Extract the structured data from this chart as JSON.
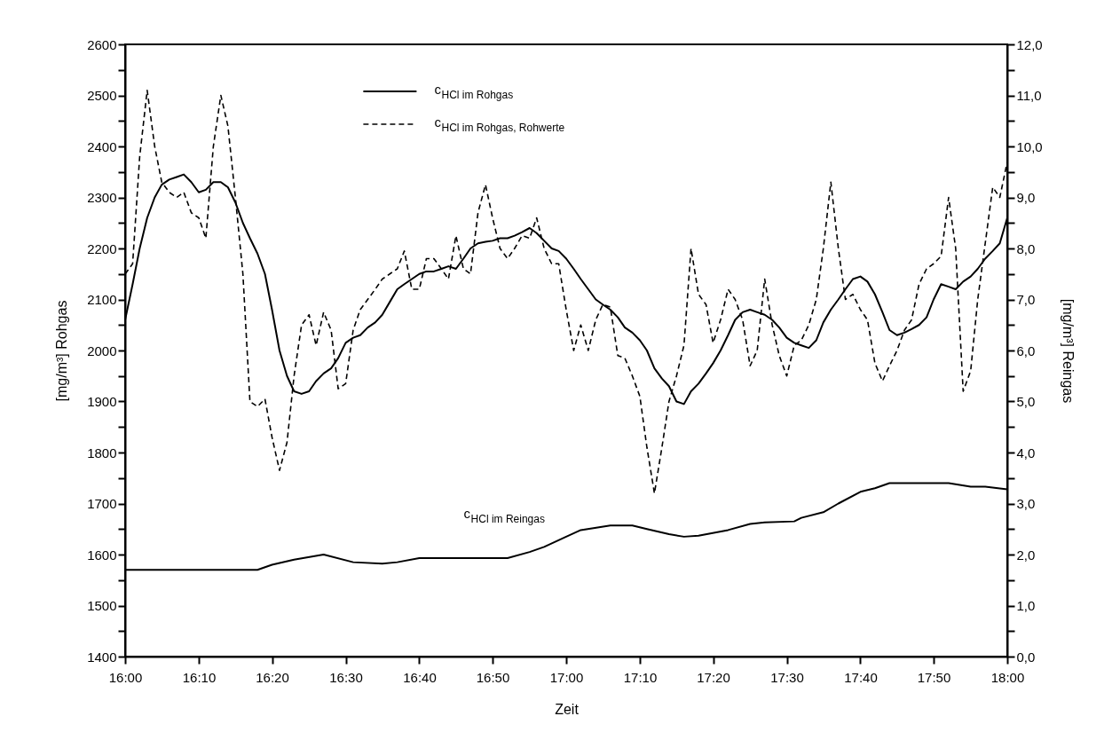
{
  "chart_data": {
    "type": "line",
    "xlabel": "Zeit",
    "ylabel": "[mg/m³] Rohgas",
    "y2label": "[mg/m³] Reingas",
    "x": [
      16,
      16.017,
      16.033,
      16.05,
      16.067,
      16.083,
      16.1,
      16.117,
      16.133,
      16.15,
      16.167,
      16.183,
      16.2,
      16.217,
      16.233,
      16.25,
      16.267,
      16.283,
      16.3,
      16.317,
      16.333,
      16.35,
      16.367,
      16.383,
      16.4,
      16.417,
      16.433,
      16.45,
      16.467,
      16.483,
      16.5,
      16.517,
      16.533,
      16.55,
      16.567,
      16.583,
      16.6,
      16.617,
      16.633,
      16.65,
      16.667,
      16.683,
      16.7,
      16.717,
      16.733,
      16.75,
      16.767,
      16.783,
      16.8,
      16.817,
      16.833,
      16.85,
      16.867,
      16.883,
      16.9,
      16.917,
      16.933,
      16.95,
      16.967,
      16.983,
      17,
      17.017,
      17.033,
      17.05,
      17.067,
      17.083,
      17.1,
      17.117,
      17.133,
      17.15,
      17.167,
      17.183,
      17.2,
      17.217,
      17.233,
      17.25,
      17.267,
      17.283,
      17.3,
      17.317,
      17.333,
      17.35,
      17.367,
      17.383,
      17.4,
      17.417,
      17.433,
      17.45,
      17.467,
      17.483,
      17.5,
      17.517,
      17.533,
      17.55,
      17.567,
      17.583,
      17.6,
      17.617,
      17.633,
      17.65,
      17.667,
      17.683,
      17.7,
      17.717,
      17.733,
      17.75,
      17.767,
      17.783,
      17.8,
      17.817,
      17.833,
      17.85,
      17.867,
      17.883,
      17.9,
      17.917,
      17.933,
      17.95,
      17.967,
      17.983,
      18
    ],
    "series": [
      {
        "name": "c$_{HCl}$ im Rohgas",
        "color": "#000000",
        "line_style": "solid",
        "values": [
          2060,
          2130,
          2200,
          2260,
          2300,
          2325,
          2335,
          2340,
          2345,
          2330,
          2310,
          2315,
          2330,
          2330,
          2320,
          2290,
          2250,
          2220,
          2190,
          2150,
          2080,
          2000,
          1950,
          1920,
          1915,
          1920,
          1940,
          1955,
          1965,
          1985,
          2015,
          2025,
          2030,
          2045,
          2055,
          2070,
          2095,
          2120,
          2130,
          2140,
          2150,
          2155,
          2155,
          2160,
          2165,
          2160,
          2180,
          2200,
          2210,
          2213,
          2215,
          2220,
          2220,
          2225,
          2232,
          2240,
          2230,
          2215,
          2200,
          2195,
          2180,
          2160,
          2140,
          2120,
          2100,
          2090,
          2080,
          2065,
          2045,
          2035,
          2020,
          2000,
          1965,
          1945,
          1930,
          1900,
          1895,
          1920,
          1935,
          1955,
          1975,
          2000,
          2030,
          2060,
          2075,
          2080,
          2075,
          2070,
          2060,
          2045,
          2025,
          2015,
          2010,
          2005,
          2020,
          2055,
          2080,
          2100,
          2120,
          2140,
          2145,
          2135,
          2110,
          2075,
          2040,
          2030,
          2035,
          2042,
          2050,
          2065,
          2100,
          2130,
          2125,
          2120,
          2135,
          2145,
          2160,
          2180,
          2195,
          2210,
          2260
        ]
      },
      {
        "name": "c$_{HCl}$ im Rohgas, Rohwerte",
        "color": "#000000",
        "line_style": "dashed",
        "values": [
          2150,
          2170,
          2380,
          2510,
          2400,
          2330,
          2310,
          2300,
          2310,
          2270,
          2260,
          2220,
          2400,
          2500,
          2440,
          2300,
          2150,
          1900,
          1890,
          1905,
          1830,
          1765,
          1820,
          1950,
          2050,
          2070,
          2010,
          2075,
          2040,
          1925,
          1935,
          2040,
          2080,
          2100,
          2120,
          2140,
          2150,
          2160,
          2195,
          2120,
          2120,
          2180,
          2180,
          2160,
          2140,
          2225,
          2160,
          2150,
          2270,
          2325,
          2260,
          2200,
          2180,
          2200,
          2225,
          2220,
          2260,
          2200,
          2170,
          2170,
          2080,
          2000,
          2050,
          2000,
          2060,
          2090,
          2085,
          1990,
          1985,
          1950,
          1910,
          1810,
          1720,
          1810,
          1900,
          1950,
          2010,
          2200,
          2110,
          2090,
          2015,
          2060,
          2120,
          2100,
          2060,
          1970,
          2000,
          2140,
          2050,
          1990,
          1950,
          2010,
          2020,
          2050,
          2100,
          2200,
          2330,
          2200,
          2100,
          2110,
          2080,
          2060,
          1975,
          1940,
          1970,
          2000,
          2040,
          2060,
          2130,
          2160,
          2170,
          2185,
          2300,
          2200,
          1920,
          1960,
          2100,
          2210,
          2320,
          2300,
          2370
        ]
      },
      {
        "name": "c$_{HCl}$ im Reingas",
        "color": "#000000",
        "line_style": "solid",
        "axis": "y2",
        "x": [
          16,
          16.3,
          16.333,
          16.383,
          16.45,
          16.517,
          16.583,
          16.617,
          16.667,
          16.867,
          16.917,
          16.95,
          17,
          17.033,
          17.1,
          17.15,
          17.183,
          17.233,
          17.267,
          17.3,
          17.367,
          17.417,
          17.45,
          17.517,
          17.533,
          17.583,
          17.617,
          17.667,
          17.7,
          17.733,
          17.867,
          17.917,
          17.95,
          18
        ],
        "values": [
          1.7,
          1.7,
          1.8,
          1.9,
          2.0,
          1.85,
          1.82,
          1.85,
          1.93,
          1.93,
          2.05,
          2.15,
          2.35,
          2.48,
          2.57,
          2.57,
          2.5,
          2.4,
          2.35,
          2.37,
          2.48,
          2.6,
          2.63,
          2.65,
          2.72,
          2.83,
          3.0,
          3.23,
          3.3,
          3.4,
          3.4,
          3.33,
          3.33,
          3.28
        ]
      }
    ],
    "xlim": [
      16,
      18
    ],
    "xticks": [
      {
        "value": 16,
        "label": "16:00"
      },
      {
        "value": 16.167,
        "label": "16:10"
      },
      {
        "value": 16.333,
        "label": "16:20"
      },
      {
        "value": 16.5,
        "label": "16:30"
      },
      {
        "value": 16.667,
        "label": "16:40"
      },
      {
        "value": 16.833,
        "label": "16:50"
      },
      {
        "value": 17,
        "label": "17:00"
      },
      {
        "value": 17.167,
        "label": "17:10"
      },
      {
        "value": 17.333,
        "label": "17:20"
      },
      {
        "value": 17.5,
        "label": "17:30"
      },
      {
        "value": 17.667,
        "label": "17:40"
      },
      {
        "value": 17.833,
        "label": "17:50"
      },
      {
        "value": 18,
        "label": "18:00"
      }
    ],
    "ylim": [
      1400,
      2600
    ],
    "yticks": [
      1400,
      {
        "value": 1450,
        "label": null
      },
      1500,
      {
        "value": 1550,
        "label": null
      },
      1600,
      {
        "value": 1650,
        "label": null
      },
      1700,
      {
        "value": 1750,
        "label": null
      },
      1800,
      {
        "value": 1850,
        "label": null
      },
      1900,
      {
        "value": 1950,
        "label": null
      },
      2000,
      {
        "value": 2050,
        "label": null
      },
      2100,
      {
        "value": 2150,
        "label": null
      },
      2200,
      {
        "value": 2250,
        "label": null
      },
      2300,
      {
        "value": 2350,
        "label": null
      },
      2400,
      {
        "value": 2450,
        "label": null
      },
      2500,
      {
        "value": 2550,
        "label": null
      },
      2600
    ],
    "y2lim": [
      0,
      12
    ],
    "y2ticks": [
      {
        "value": 0,
        "label": "0,0"
      },
      {
        "value": 0.5,
        "label": null
      },
      {
        "value": 1,
        "label": "1,0"
      },
      {
        "value": 1.5,
        "label": null
      },
      {
        "value": 2,
        "label": "2,0"
      },
      {
        "value": 2.5,
        "label": null
      },
      {
        "value": 3,
        "label": "3,0"
      },
      {
        "value": 3.5,
        "label": null
      },
      {
        "value": 4,
        "label": "4,0"
      },
      {
        "value": 4.5,
        "label": null
      },
      {
        "value": 5,
        "label": "5,0"
      },
      {
        "value": 5.5,
        "label": null
      },
      {
        "value": 6,
        "label": "6,0"
      },
      {
        "value": 6.5,
        "label": null
      },
      {
        "value": 7,
        "label": "7,0"
      },
      {
        "value": 7.5,
        "label": null
      },
      {
        "value": 8,
        "label": "8,0"
      },
      {
        "value": 8.5,
        "label": null
      },
      {
        "value": 9,
        "label": "9,0"
      },
      {
        "value": 9.5,
        "label": null
      },
      {
        "value": 10,
        "label": "10,0"
      },
      {
        "value": 10.5,
        "label": null
      },
      {
        "value": 11,
        "label": "11,0"
      },
      {
        "value": 11.5,
        "label": null
      },
      {
        "value": 12,
        "label": "12,0"
      }
    ],
    "grid": false,
    "legend": "top",
    "marker": "none"
  }
}
